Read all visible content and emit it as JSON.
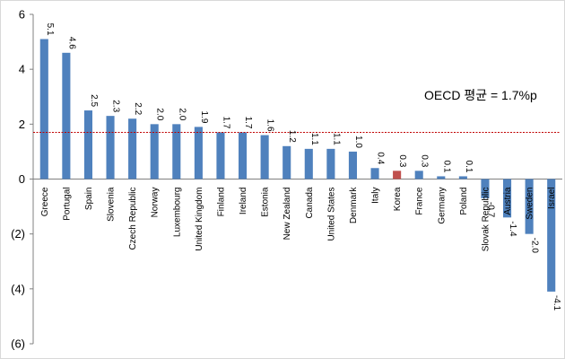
{
  "chart_data": {
    "type": "bar",
    "categories": [
      "Greece",
      "Portugal",
      "Spain",
      "Slovenia",
      "Czech Republic",
      "Norway",
      "Luxembourg",
      "United Kingdom",
      "Finland",
      "Ireland",
      "Estonia",
      "New Zealand",
      "Canada",
      "United States",
      "Denmark",
      "Italy",
      "Korea",
      "France",
      "Germany",
      "Poland",
      "Slovak Republic",
      "Austria",
      "Sweden",
      "Israel"
    ],
    "values": [
      5.1,
      4.6,
      2.5,
      2.3,
      2.2,
      2.0,
      2.0,
      1.9,
      1.7,
      1.7,
      1.6,
      1.2,
      1.1,
      1.1,
      1.0,
      0.4,
      0.3,
      0.3,
      0.1,
      0.1,
      -0.7,
      -1.4,
      -2.0,
      -4.1
    ],
    "value_labels": [
      "5.1",
      "4.6",
      "2.5",
      "2.3",
      "2.2",
      "2.0",
      "2.0",
      "1.9",
      "1.7",
      "1.7",
      "1.6",
      "1.2",
      "1.1",
      "1.1",
      "1.0",
      "0.4",
      "0.3",
      "0.3",
      "0.1",
      "0.1",
      "-0.7",
      "-1.4",
      "-2.0",
      "-4.1"
    ],
    "ylim": [
      -6,
      6
    ],
    "yticks": [
      6,
      4,
      2,
      0,
      -2,
      -4,
      -6
    ],
    "ytick_labels": [
      "6",
      "4",
      "2",
      "0",
      "(2)",
      "(4)",
      "(6)"
    ],
    "bar_color": "#4f81bd",
    "highlight_category": "Korea",
    "highlight_color": "#c0504d",
    "reference_line": {
      "value": 1.7,
      "label": "OECD 평균 = 1.7%p",
      "color": "#c00000",
      "style": "dotted"
    },
    "grid": false,
    "legend": "none"
  }
}
